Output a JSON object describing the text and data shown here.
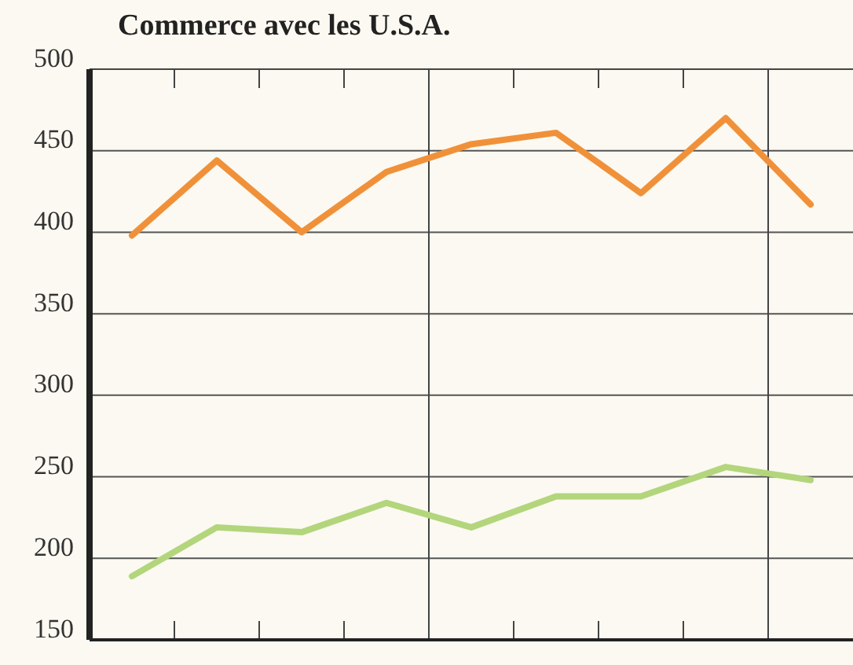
{
  "chart_data": {
    "type": "line",
    "title": "Commerce avec les U.S.A.",
    "categories": [
      null,
      null,
      null,
      null,
      null,
      null,
      null,
      null,
      null
    ],
    "series": [
      {
        "color": "#f0913a",
        "values": [
          398,
          444,
          400,
          437,
          454,
          461,
          424,
          470,
          417
        ]
      },
      {
        "color": "#b3d57c",
        "values": [
          189,
          219,
          216,
          234,
          219,
          238,
          238,
          256,
          248
        ]
      }
    ],
    "ylim": [
      150,
      500
    ],
    "yticks": [
      150,
      200,
      250,
      300,
      350,
      400,
      450,
      500
    ],
    "grid": "y",
    "tick_labels": "y",
    "marker": "none",
    "line_style": "solid"
  }
}
